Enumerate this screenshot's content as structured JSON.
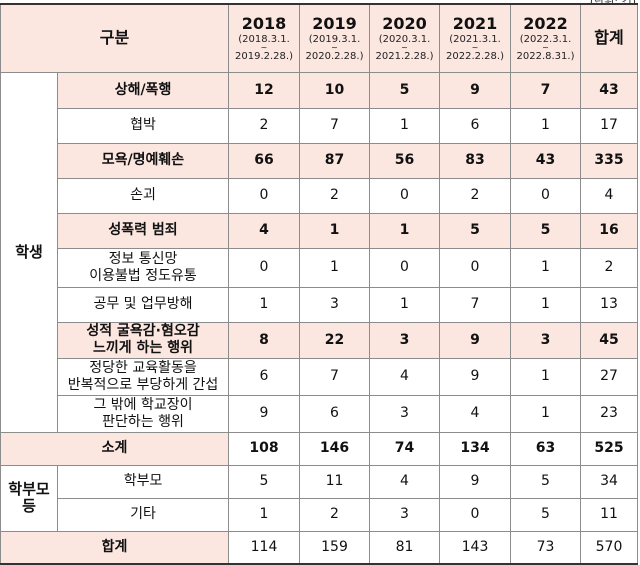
{
  "unit_label": "(단위: 건)",
  "header": {
    "category_label": "구분",
    "total_label": "합계",
    "years": [
      {
        "year": "2018",
        "period_start": "(2018.3.1.",
        "period_end": "2019.2.28.)"
      },
      {
        "year": "2019",
        "period_start": "(2019.3.1.",
        "period_end": "2020.2.28.)"
      },
      {
        "year": "2020",
        "period_start": "(2020.3.1.",
        "period_end": "2021.2.28.)"
      },
      {
        "year": "2021",
        "period_start": "(2021.3.1.",
        "period_end": "2022.2.28.)"
      },
      {
        "year": "2022",
        "period_start": "(2022.3.1.",
        "period_end": "2022.8.31.)"
      }
    ],
    "tilde": "~"
  },
  "groups": {
    "student": "학생",
    "parent": "학부모\n등"
  },
  "student_rows": [
    {
      "label": "상해/폭행",
      "values": [
        "12",
        "10",
        "5",
        "9",
        "7"
      ],
      "total": "43"
    },
    {
      "label": "협박",
      "values": [
        "2",
        "7",
        "1",
        "6",
        "1"
      ],
      "total": "17"
    },
    {
      "label": "모욕/명예훼손",
      "values": [
        "66",
        "87",
        "56",
        "83",
        "43"
      ],
      "total": "335"
    },
    {
      "label": "손괴",
      "values": [
        "0",
        "2",
        "0",
        "2",
        "0"
      ],
      "total": "4"
    },
    {
      "label": "성폭력 범죄",
      "values": [
        "4",
        "1",
        "1",
        "5",
        "5"
      ],
      "total": "16"
    },
    {
      "label": "정보 통신망\n이용불법 정도유통",
      "values": [
        "0",
        "1",
        "0",
        "0",
        "1"
      ],
      "total": "2"
    },
    {
      "label": "공무 및 업무방해",
      "values": [
        "1",
        "3",
        "1",
        "7",
        "1"
      ],
      "total": "13"
    },
    {
      "label": "성적 굴욕감·혐오감\n느끼게 하는 행위",
      "values": [
        "8",
        "22",
        "3",
        "9",
        "3"
      ],
      "total": "45"
    },
    {
      "label": "정당한 교육활동을\n반복적으로 부당하게 간섭",
      "values": [
        "6",
        "7",
        "4",
        "9",
        "1"
      ],
      "total": "27"
    },
    {
      "label": "그 밖에 학교장이\n판단하는 행위",
      "values": [
        "9",
        "6",
        "3",
        "4",
        "1"
      ],
      "total": "23"
    }
  ],
  "subtotal": {
    "label": "소계",
    "values": [
      "108",
      "146",
      "74",
      "134",
      "63"
    ],
    "total": "525"
  },
  "parent_rows": [
    {
      "label": "학부모",
      "values": [
        "5",
        "11",
        "4",
        "9",
        "5"
      ],
      "total": "34"
    },
    {
      "label": "기타",
      "values": [
        "1",
        "2",
        "3",
        "0",
        "5"
      ],
      "total": "11"
    }
  ],
  "grand_total": {
    "label": "합계",
    "values": [
      "114",
      "159",
      "81",
      "143",
      "73"
    ],
    "total": "570"
  },
  "colors": {
    "highlight": "#fbe6e0",
    "border": "#8c8c8c"
  }
}
